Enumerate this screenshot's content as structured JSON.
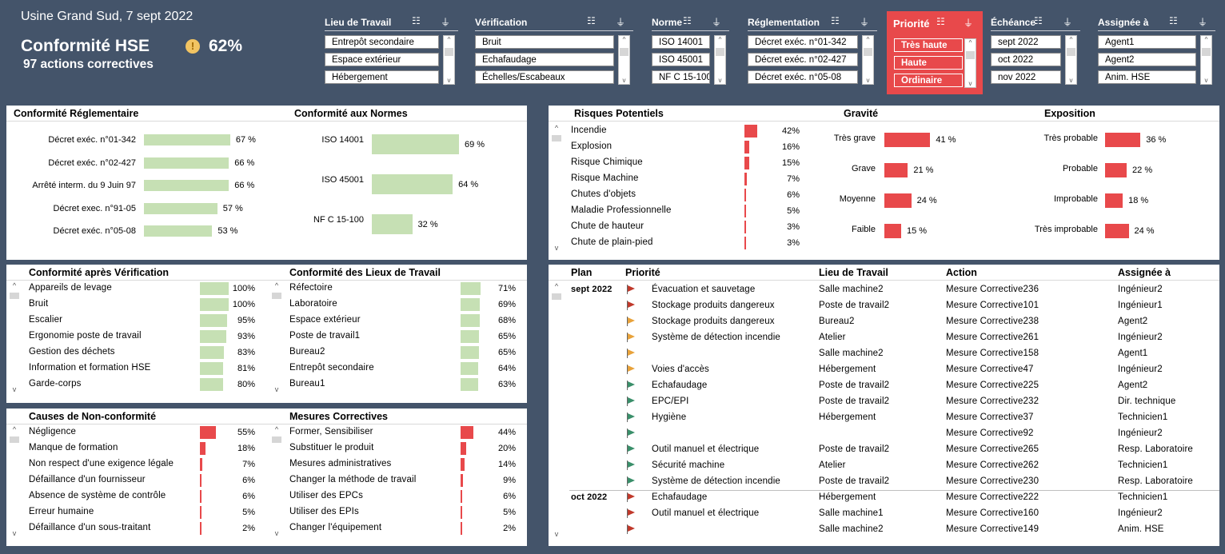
{
  "header": {
    "title": "Usine Grand Sud, 7 sept 2022",
    "kpi_label": "Conformité HSE",
    "kpi_value": "62%",
    "kpi_icon": "!",
    "sub": "97 actions correctives"
  },
  "slicers": [
    {
      "title": "Lieu de Travail",
      "items": [
        "Entrepôt secondaire",
        "Espace extérieur",
        "Hébergement"
      ]
    },
    {
      "title": "Vérification",
      "items": [
        "Bruit",
        "Echafaudage",
        "Échelles/Escabeaux"
      ]
    },
    {
      "title": "Norme",
      "items": [
        "ISO 14001",
        "ISO 45001",
        "NF C 15-100"
      ]
    },
    {
      "title": "Réglementation",
      "items": [
        "Décret exéc. n°01-342",
        "Décret exéc. n°02-427",
        "Décret exéc. n°05-08"
      ]
    },
    {
      "title": "Priorité",
      "items": [
        "Très haute",
        "Haute",
        "Ordinaire"
      ]
    },
    {
      "title": "Échéance",
      "items": [
        "sept 2022",
        "oct 2022",
        "nov 2022"
      ]
    },
    {
      "title": "Assignée à",
      "items": [
        "Agent1",
        "Agent2",
        "Anim. HSE"
      ]
    }
  ],
  "colors": {
    "accent_red": "#e8494b",
    "bar_green": "#c6e0b4",
    "background": "#44546a"
  },
  "reg": {
    "title": "Conformité Réglementaire",
    "rows": [
      {
        "label": "Décret exéc. n°01-342",
        "value": 67,
        "text": "67 %"
      },
      {
        "label": "Décret exéc. n°02-427",
        "value": 66,
        "text": "66 %"
      },
      {
        "label": "Arrêté interm. du 9 Juin 97",
        "value": 66,
        "text": "66 %"
      },
      {
        "label": "Décret exec. n°91-05",
        "value": 57,
        "text": "57 %"
      },
      {
        "label": "Décret exéc. n°05-08",
        "value": 53,
        "text": "53 %"
      }
    ]
  },
  "norms": {
    "title": "Conformité aux Normes",
    "rows": [
      {
        "label": "ISO 14001",
        "value": 69,
        "text": "69 %"
      },
      {
        "label": "ISO 45001",
        "value": 64,
        "text": "64 %"
      },
      {
        "label": "NF C 15-100",
        "value": 32,
        "text": "32 %"
      }
    ]
  },
  "verif": {
    "title": "Conformité après Vérification",
    "rows": [
      {
        "label": "Appareils de levage",
        "value": 100,
        "text": "100%"
      },
      {
        "label": "Bruit",
        "value": 100,
        "text": "100%"
      },
      {
        "label": "Escalier",
        "value": 95,
        "text": "95%"
      },
      {
        "label": "Ergonomie poste de travail",
        "value": 93,
        "text": "93%"
      },
      {
        "label": "Gestion des déchets",
        "value": 83,
        "text": "83%"
      },
      {
        "label": "Information et formation HSE",
        "value": 81,
        "text": "81%"
      },
      {
        "label": "Garde-corps",
        "value": 80,
        "text": "80%"
      }
    ]
  },
  "lieux": {
    "title": "Conformité des Lieux de Travail",
    "rows": [
      {
        "label": "Réfectoire",
        "value": 71,
        "text": "71%"
      },
      {
        "label": "Laboratoire",
        "value": 69,
        "text": "69%"
      },
      {
        "label": "Espace extérieur",
        "value": 68,
        "text": "68%"
      },
      {
        "label": "Poste de travail1",
        "value": 65,
        "text": "65%"
      },
      {
        "label": "Bureau2",
        "value": 65,
        "text": "65%"
      },
      {
        "label": "Entrepôt secondaire",
        "value": 64,
        "text": "64%"
      },
      {
        "label": "Bureau1",
        "value": 63,
        "text": "63%"
      }
    ]
  },
  "causes": {
    "title": "Causes de Non-conformité",
    "rows": [
      {
        "label": "Négligence",
        "value": 55,
        "text": "55%"
      },
      {
        "label": "Manque de formation",
        "value": 18,
        "text": "18%"
      },
      {
        "label": "Non respect d'une exigence légale",
        "value": 7,
        "text": "7%"
      },
      {
        "label": "Défaillance d'un fournisseur",
        "value": 6,
        "text": "6%"
      },
      {
        "label": "Absence de système de contrôle",
        "value": 6,
        "text": "6%"
      },
      {
        "label": "Erreur humaine",
        "value": 5,
        "text": "5%"
      },
      {
        "label": "Défaillance d'un sous-traitant",
        "value": 2,
        "text": "2%"
      }
    ]
  },
  "mesures": {
    "title": "Mesures Correctives",
    "rows": [
      {
        "label": "Former, Sensibiliser",
        "value": 44,
        "text": "44%"
      },
      {
        "label": "Substituer le produit",
        "value": 20,
        "text": "20%"
      },
      {
        "label": "Mesures administratives",
        "value": 14,
        "text": "14%"
      },
      {
        "label": "Changer la méthode de travail",
        "value": 9,
        "text": "9%"
      },
      {
        "label": "Utiliser des EPCs",
        "value": 6,
        "text": "6%"
      },
      {
        "label": "Utiliser des EPIs",
        "value": 5,
        "text": "5%"
      },
      {
        "label": "Changer l'équipement",
        "value": 2,
        "text": "2%"
      }
    ]
  },
  "risques": {
    "title": "Risques Potentiels",
    "rows": [
      {
        "label": "Incendie",
        "value": 42,
        "text": "42%"
      },
      {
        "label": "Explosion",
        "value": 16,
        "text": "16%"
      },
      {
        "label": "Risque Chimique",
        "value": 15,
        "text": "15%"
      },
      {
        "label": "Risque Machine",
        "value": 7,
        "text": "7%"
      },
      {
        "label": "Chutes d'objets",
        "value": 6,
        "text": "6%"
      },
      {
        "label": "Maladie Professionnelle",
        "value": 5,
        "text": "5%"
      },
      {
        "label": "Chute de hauteur",
        "value": 3,
        "text": "3%"
      },
      {
        "label": "Chute de plain-pied",
        "value": 3,
        "text": "3%"
      }
    ]
  },
  "gravite": {
    "title": "Gravité",
    "rows": [
      {
        "label": "Très grave",
        "value": 41,
        "text": "41 %"
      },
      {
        "label": "Grave",
        "value": 21,
        "text": "21 %"
      },
      {
        "label": "Moyenne",
        "value": 24,
        "text": "24 %"
      },
      {
        "label": "Faible",
        "value": 15,
        "text": "15 %"
      }
    ]
  },
  "exposition": {
    "title": "Exposition",
    "rows": [
      {
        "label": "Très probable",
        "value": 36,
        "text": "36 %"
      },
      {
        "label": "Probable",
        "value": 22,
        "text": "22 %"
      },
      {
        "label": "Improbable",
        "value": 18,
        "text": "18 %"
      },
      {
        "label": "Très improbable",
        "value": 24,
        "text": "24 %"
      }
    ]
  },
  "plan": {
    "headers": [
      "Plan",
      "Priorité",
      "Lieu de Travail",
      "Action",
      "Assignée à"
    ],
    "rows": [
      {
        "plan": "sept 2022",
        "flag": "#c0392b",
        "prio": "Évacuation et sauvetage",
        "lieu": "Salle machine2",
        "action": "Mesure Corrective236",
        "who": "Ingénieur2"
      },
      {
        "plan": "",
        "flag": "#c0392b",
        "prio": "Stockage produits dangereux",
        "lieu": "Poste de travail2",
        "action": "Mesure Corrective101",
        "who": "Ingénieur1"
      },
      {
        "plan": "",
        "flag": "#e8a23a",
        "prio": "Stockage produits dangereux",
        "lieu": "Bureau2",
        "action": "Mesure Corrective238",
        "who": "Agent2"
      },
      {
        "plan": "",
        "flag": "#e8a23a",
        "prio": "Système de détection incendie",
        "lieu": "Atelier",
        "action": "Mesure Corrective261",
        "who": "Ingénieur2"
      },
      {
        "plan": "",
        "flag": "#e8a23a",
        "prio": "",
        "lieu": "Salle machine2",
        "action": "Mesure Corrective158",
        "who": "Agent1"
      },
      {
        "plan": "",
        "flag": "#e8a23a",
        "prio": "Voies d'accès",
        "lieu": "Hébergement",
        "action": "Mesure Corrective47",
        "who": "Ingénieur2"
      },
      {
        "plan": "",
        "flag": "#3a8f6a",
        "prio": "Echafaudage",
        "lieu": "Poste de travail2",
        "action": "Mesure Corrective225",
        "who": "Agent2"
      },
      {
        "plan": "",
        "flag": "#3a8f6a",
        "prio": "EPC/EPI",
        "lieu": "Poste de travail2",
        "action": "Mesure Corrective232",
        "who": "Dir. technique"
      },
      {
        "plan": "",
        "flag": "#3a8f6a",
        "prio": "Hygiène",
        "lieu": "Hébergement",
        "action": "Mesure Corrective37",
        "who": "Technicien1"
      },
      {
        "plan": "",
        "flag": "#3a8f6a",
        "prio": "",
        "lieu": "",
        "action": "Mesure Corrective92",
        "who": "Ingénieur2"
      },
      {
        "plan": "",
        "flag": "#3a8f6a",
        "prio": "Outil manuel et électrique",
        "lieu": "Poste de travail2",
        "action": "Mesure Corrective265",
        "who": "Resp. Laboratoire"
      },
      {
        "plan": "",
        "flag": "#3a8f6a",
        "prio": "Sécurité machine",
        "lieu": "Atelier",
        "action": "Mesure Corrective262",
        "who": "Technicien1"
      },
      {
        "plan": "",
        "flag": "#3a8f6a",
        "prio": "Système de détection incendie",
        "lieu": "Poste de travail2",
        "action": "Mesure Corrective230",
        "who": "Resp. Laboratoire"
      },
      {
        "plan": "oct 2022",
        "flag": "#c0392b",
        "prio": "Echafaudage",
        "lieu": "Hébergement",
        "action": "Mesure Corrective222",
        "who": "Technicien1"
      },
      {
        "plan": "",
        "flag": "#c0392b",
        "prio": "Outil manuel et électrique",
        "lieu": "Salle machine1",
        "action": "Mesure Corrective160",
        "who": "Ingénieur2"
      },
      {
        "plan": "",
        "flag": "#c0392b",
        "prio": "",
        "lieu": "Salle machine2",
        "action": "Mesure Corrective149",
        "who": "Anim. HSE"
      }
    ]
  }
}
